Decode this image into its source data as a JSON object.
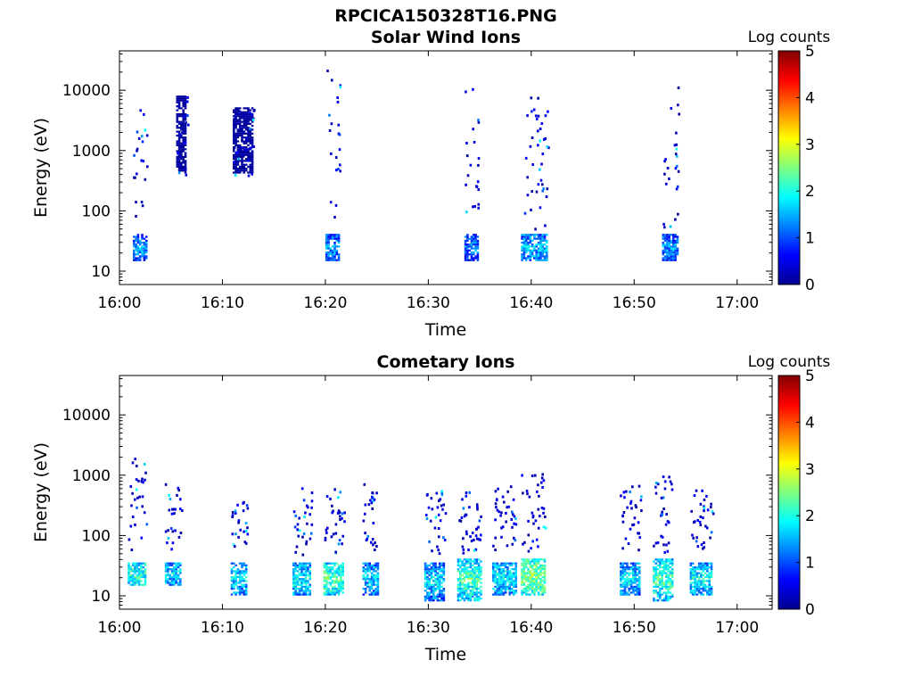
{
  "figure_title": "RPCICA150328T16.PNG",
  "chart_data": [
    {
      "type": "heatmap",
      "title": "Solar Wind Ions",
      "xlabel": "Time",
      "ylabel": "Energy (eV)",
      "x_ticks": [
        "16:00",
        "16:10",
        "16:20",
        "16:30",
        "16:40",
        "16:50",
        "17:00"
      ],
      "x_range_minutes": [
        0,
        63.4
      ],
      "y_scale": "log",
      "y_ticks": [
        "10",
        "100",
        "1000",
        "10000"
      ],
      "y_range": [
        6,
        45000
      ],
      "colorbar": {
        "label": "Log counts",
        "ticks": [
          "0",
          "1",
          "2",
          "3",
          "4",
          "5"
        ],
        "range": [
          0,
          5
        ],
        "colormap": "jet"
      },
      "bursts": [
        {
          "t_min": 1.3,
          "t_max": 2.7,
          "e_low": 14,
          "e_high": 40,
          "peak": 2.0,
          "sparse_above": [
            60,
            5000
          ]
        },
        {
          "t_min": 5.5,
          "t_max": 6.6,
          "e_low": 400,
          "e_high": 8000,
          "peak": 0.3,
          "sparse_above": [
            400,
            8000
          ]
        },
        {
          "t_min": 11.0,
          "t_max": 13.0,
          "e_low": 400,
          "e_high": 5000,
          "peak": 0.3,
          "sparse_above": [
            400,
            5000
          ]
        },
        {
          "t_min": 20.0,
          "t_max": 21.4,
          "e_low": 14,
          "e_high": 40,
          "peak": 1.9,
          "sparse_above": [
            50,
            25000
          ]
        },
        {
          "t_min": 33.5,
          "t_max": 34.9,
          "e_low": 14,
          "e_high": 40,
          "peak": 1.8,
          "sparse_above": [
            50,
            15000
          ]
        },
        {
          "t_min": 39.0,
          "t_max": 41.6,
          "e_low": 14,
          "e_high": 40,
          "peak": 2.1,
          "sparse_above": [
            50,
            8000
          ]
        },
        {
          "t_min": 52.7,
          "t_max": 54.3,
          "e_low": 14,
          "e_high": 40,
          "peak": 1.9,
          "sparse_above": [
            50,
            15000
          ]
        }
      ]
    },
    {
      "type": "heatmap",
      "title": "Cometary Ions",
      "xlabel": "Time",
      "ylabel": "Energy (eV)",
      "x_ticks": [
        "16:00",
        "16:10",
        "16:20",
        "16:30",
        "16:40",
        "16:50",
        "17:00"
      ],
      "x_range_minutes": [
        0,
        63.4
      ],
      "y_scale": "log",
      "y_ticks": [
        "10",
        "100",
        "1000",
        "10000"
      ],
      "y_range": [
        6,
        45000
      ],
      "colorbar": {
        "label": "Log counts",
        "ticks": [
          "0",
          "1",
          "2",
          "3",
          "4",
          "5"
        ],
        "range": [
          0,
          5
        ],
        "colormap": "jet"
      },
      "bursts": [
        {
          "t_min": 0.8,
          "t_max": 2.6,
          "e_low": 14,
          "e_high": 35,
          "peak": 2.6,
          "sparse_above": [
            60,
            2000
          ]
        },
        {
          "t_min": 4.4,
          "t_max": 6.0,
          "e_low": 14,
          "e_high": 35,
          "peak": 2.2,
          "sparse_above": [
            60,
            800
          ]
        },
        {
          "t_min": 10.8,
          "t_max": 12.4,
          "e_low": 10,
          "e_high": 35,
          "peak": 2.3,
          "sparse_above": [
            60,
            400
          ]
        },
        {
          "t_min": 16.8,
          "t_max": 18.6,
          "e_low": 10,
          "e_high": 35,
          "peak": 2.4,
          "sparse_above": [
            50,
            700
          ]
        },
        {
          "t_min": 19.8,
          "t_max": 21.8,
          "e_low": 10,
          "e_high": 35,
          "peak": 2.8,
          "sparse_above": [
            50,
            700
          ]
        },
        {
          "t_min": 23.6,
          "t_max": 25.2,
          "e_low": 10,
          "e_high": 35,
          "peak": 2.2,
          "sparse_above": [
            60,
            800
          ]
        },
        {
          "t_min": 29.6,
          "t_max": 31.6,
          "e_low": 8,
          "e_high": 35,
          "peak": 2.3,
          "sparse_above": [
            50,
            600
          ]
        },
        {
          "t_min": 32.8,
          "t_max": 35.2,
          "e_low": 8,
          "e_high": 40,
          "peak": 2.8,
          "sparse_above": [
            50,
            600
          ]
        },
        {
          "t_min": 36.2,
          "t_max": 38.6,
          "e_low": 10,
          "e_high": 35,
          "peak": 2.4,
          "sparse_above": [
            60,
            700
          ]
        },
        {
          "t_min": 39.0,
          "t_max": 41.4,
          "e_low": 10,
          "e_high": 40,
          "peak": 3.1,
          "sparse_above": [
            50,
            1200
          ]
        },
        {
          "t_min": 48.6,
          "t_max": 50.6,
          "e_low": 10,
          "e_high": 35,
          "peak": 2.3,
          "sparse_above": [
            60,
            700
          ]
        },
        {
          "t_min": 51.8,
          "t_max": 53.8,
          "e_low": 8,
          "e_high": 40,
          "peak": 2.8,
          "sparse_above": [
            50,
            1000
          ]
        },
        {
          "t_min": 55.4,
          "t_max": 57.6,
          "e_low": 10,
          "e_high": 35,
          "peak": 2.4,
          "sparse_above": [
            60,
            600
          ]
        }
      ]
    }
  ]
}
